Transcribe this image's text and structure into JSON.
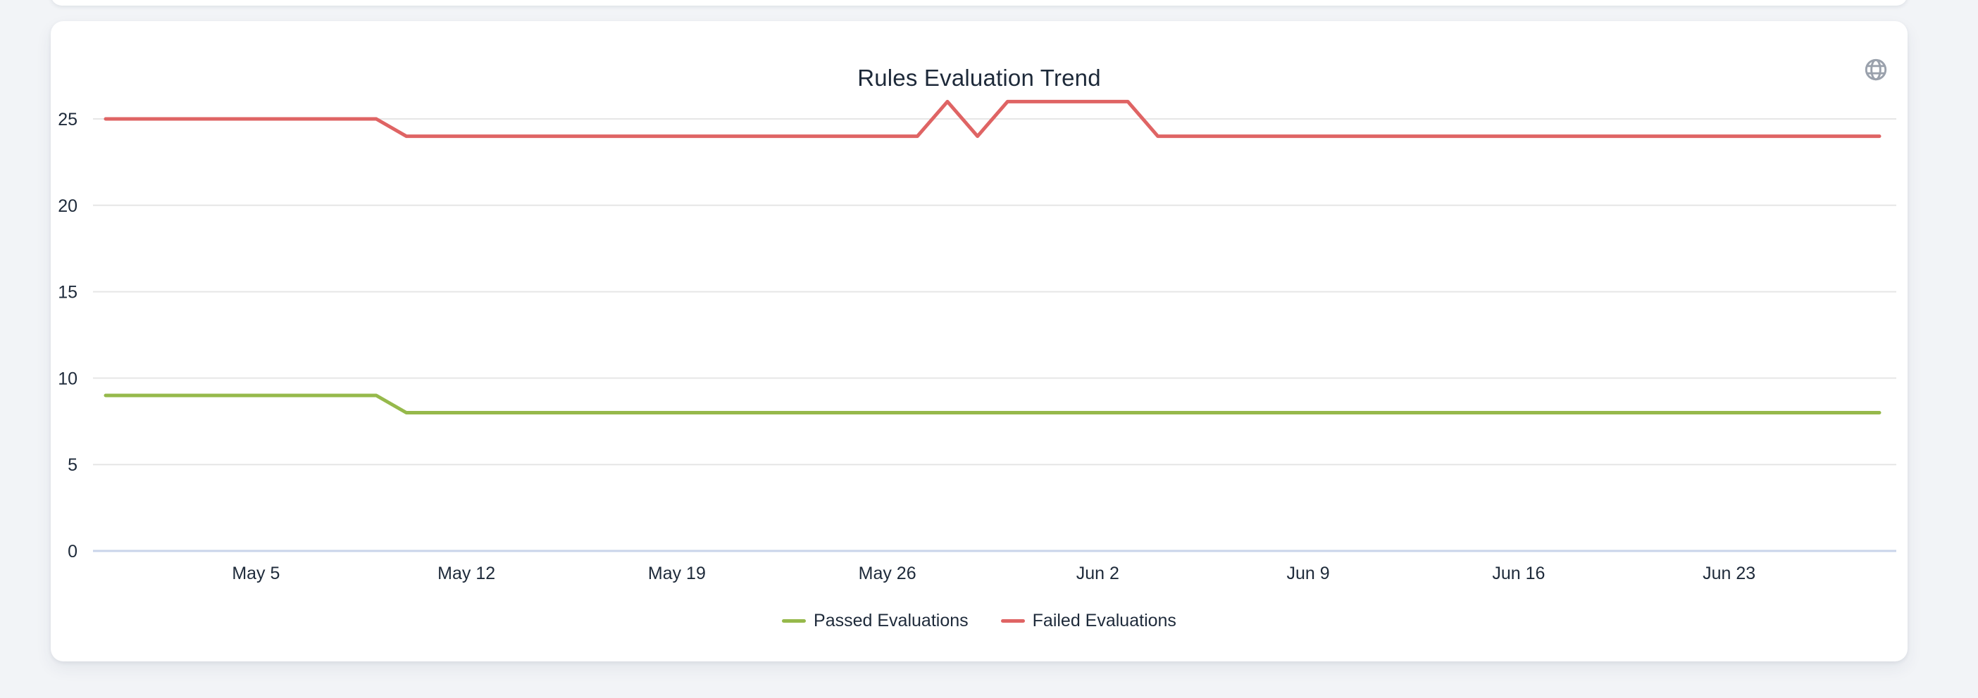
{
  "page": {
    "background_color": "#f2f4f7"
  },
  "card": {
    "title": "Rules Evaluation Trend",
    "background_color": "#ffffff",
    "globe_icon_color": "#9aa1ac"
  },
  "chart_data": {
    "type": "line",
    "title": "Rules Evaluation Trend",
    "xlabel": "",
    "ylabel": "",
    "ylim": [
      0,
      27
    ],
    "y_ticks": [
      0,
      5,
      10,
      15,
      20,
      25
    ],
    "x_tick_labels": [
      "May 5",
      "May 12",
      "May 19",
      "May 26",
      "Jun 2",
      "Jun 9",
      "Jun 16",
      "Jun 23"
    ],
    "x_tick_indices": [
      5,
      12,
      19,
      26,
      33,
      40,
      47,
      54
    ],
    "grid": "horizontal-only",
    "legend_position": "bottom",
    "colors": {
      "grid_line": "#e6e6e6",
      "zero_axis_line": "#c9d4ea",
      "axis_text": "#1e2a3a"
    },
    "series": [
      {
        "name": "Passed Evaluations",
        "color": "#96b94b",
        "values": [
          9,
          9,
          9,
          9,
          9,
          9,
          9,
          9,
          9,
          9,
          8,
          8,
          8,
          8,
          8,
          8,
          8,
          8,
          8,
          8,
          8,
          8,
          8,
          8,
          8,
          8,
          8,
          8,
          8,
          8,
          8,
          8,
          8,
          8,
          8,
          8,
          8,
          8,
          8,
          8,
          8,
          8,
          8,
          8,
          8,
          8,
          8,
          8,
          8,
          8,
          8,
          8,
          8,
          8,
          8,
          8,
          8,
          8,
          8,
          8
        ]
      },
      {
        "name": "Failed Evaluations",
        "color": "#df6464",
        "values": [
          25,
          25,
          25,
          25,
          25,
          25,
          25,
          25,
          25,
          25,
          24,
          24,
          24,
          24,
          24,
          24,
          24,
          24,
          24,
          24,
          24,
          24,
          24,
          24,
          24,
          24,
          24,
          24,
          26,
          24,
          26,
          26,
          26,
          26,
          26,
          24,
          24,
          24,
          24,
          24,
          24,
          24,
          24,
          24,
          24,
          24,
          24,
          24,
          24,
          24,
          24,
          24,
          24,
          24,
          24,
          24,
          24,
          24,
          24,
          24
        ]
      }
    ]
  }
}
